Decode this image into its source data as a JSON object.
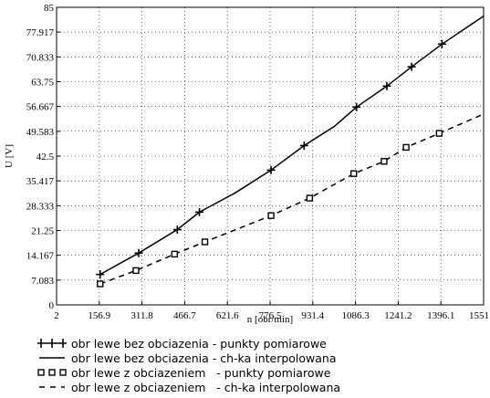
{
  "chart_data": {
    "type": "line",
    "xlabel": "n [obr/min]",
    "ylabel": "U [V]",
    "xlim": [
      2,
      1551
    ],
    "ylim": [
      0,
      85
    ],
    "x_ticks": [
      "2",
      "156.9",
      "311.8",
      "466.7",
      "621.6",
      "776.5",
      "931.4",
      "1086.3",
      "1241.2",
      "1396.1",
      "1551"
    ],
    "y_ticks": [
      "0",
      "7.083",
      "14.167",
      "21.25",
      "28.333",
      "35.417",
      "42.5",
      "49.583",
      "56.667",
      "63.75",
      "70.833",
      "77.917",
      "85"
    ],
    "series": [
      {
        "name": "obr lewe bez obciazenia - punkty pomiarowe",
        "marker": "plus",
        "x": [
          160,
          300,
          440,
          520,
          780,
          900,
          1090,
          1200,
          1290,
          1400
        ],
        "y": [
          8.7,
          14.8,
          21.5,
          26.5,
          38.5,
          45.5,
          56.5,
          62.5,
          68,
          74.5
        ]
      },
      {
        "name": "obr lewe bez obciazenia - ch-ka interpolowana",
        "style": "solid",
        "x": [
          160,
          300,
          440,
          520,
          650,
          780,
          900,
          1010,
          1090,
          1200,
          1290,
          1400,
          1551
        ],
        "y": [
          8.7,
          14.8,
          21.5,
          26.5,
          32,
          38.5,
          45.5,
          51,
          56.5,
          62.5,
          68,
          74.5,
          82.5
        ]
      },
      {
        "name": "obr lewe z obciazeniem   - punkty pomiarowe",
        "marker": "square",
        "x": [
          160,
          290,
          430,
          540,
          780,
          920,
          1080,
          1190,
          1270,
          1390
        ],
        "y": [
          6,
          9.8,
          14.5,
          18,
          25.5,
          30.5,
          37.5,
          41,
          45,
          49
        ]
      },
      {
        "name": "obr lewe z obciazeniem   - ch-ka interpolowana",
        "style": "dashed",
        "x": [
          160,
          290,
          430,
          540,
          780,
          920,
          1080,
          1190,
          1270,
          1390,
          1551
        ],
        "y": [
          6,
          9.8,
          14.5,
          18,
          25.5,
          30.5,
          37.5,
          41,
          45,
          49,
          54.5
        ]
      }
    ]
  }
}
